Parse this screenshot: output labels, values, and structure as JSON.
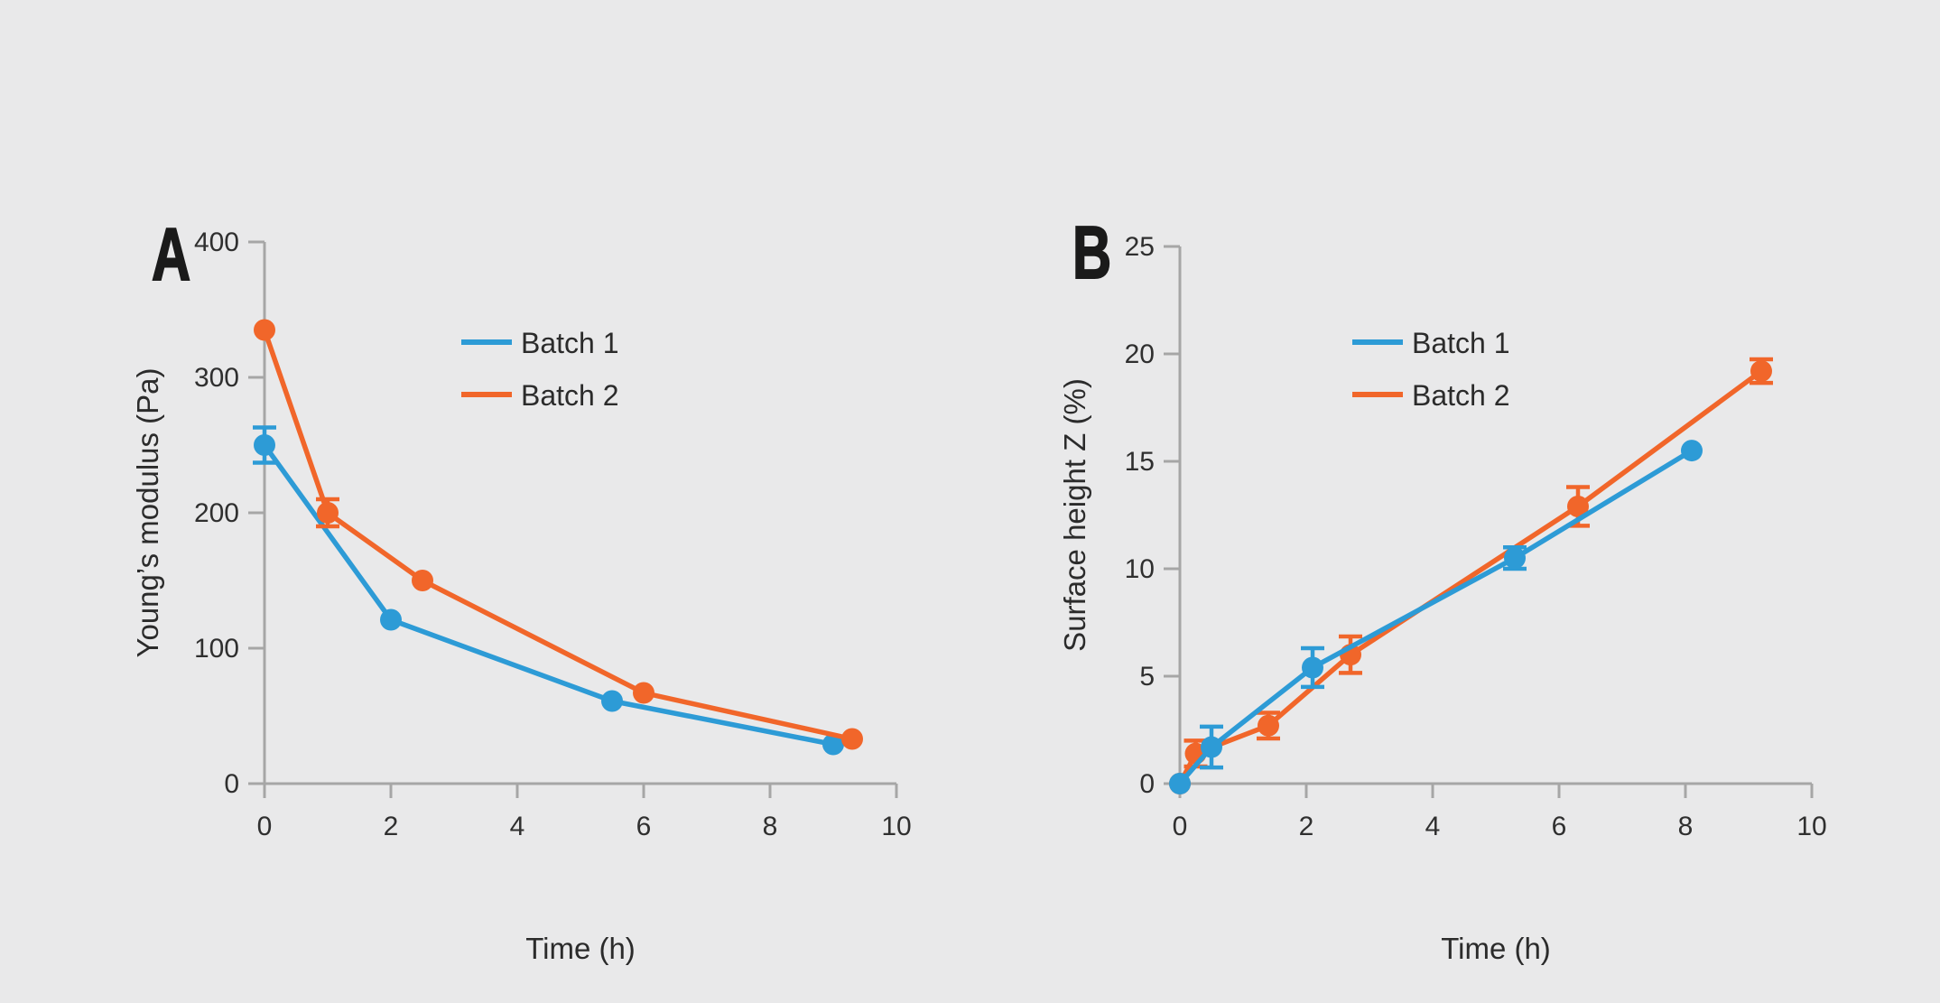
{
  "figure_title": "",
  "colors": {
    "batch1": "#2d9bd6",
    "batch2": "#f1662a",
    "axis": "#a6a6a6",
    "tick_text": "#2f2f2f",
    "label_text": "#2b2b2b",
    "panel_label": "#1a1a1a",
    "background": "#e9e9ea"
  },
  "chart_data": [
    {
      "type": "line",
      "panel_label": "A",
      "title": "",
      "xlabel": "Time (h)",
      "ylabel": "Young’s modulus (Pa)",
      "xlim": [
        0,
        10
      ],
      "ylim": [
        0,
        400
      ],
      "xticks": [
        0,
        2,
        4,
        6,
        8,
        10
      ],
      "yticks": [
        0,
        100,
        200,
        300,
        400
      ],
      "grid": false,
      "legend": [
        "Batch 1",
        "Batch 2"
      ],
      "legend_position": "upper-right-inside",
      "series": [
        {
          "name": "Batch 1",
          "color_key": "batch1",
          "x": [
            0,
            2,
            5.5,
            9
          ],
          "y": [
            250,
            121,
            61,
            29
          ],
          "yerr": [
            13,
            0,
            0,
            0
          ]
        },
        {
          "name": "Batch 2",
          "color_key": "batch2",
          "x": [
            0,
            1,
            2.5,
            6,
            9.3
          ],
          "y": [
            335,
            200,
            150,
            67,
            33
          ],
          "yerr": [
            0,
            10,
            0,
            0,
            0
          ]
        }
      ]
    },
    {
      "type": "line",
      "panel_label": "B",
      "title": "",
      "xlabel": "Time (h)",
      "ylabel": "Surface height Z (%)",
      "xlim": [
        0,
        10
      ],
      "ylim": [
        0,
        25
      ],
      "xticks": [
        0,
        2,
        4,
        6,
        8,
        10
      ],
      "yticks": [
        0,
        5,
        10,
        15,
        20,
        25
      ],
      "grid": false,
      "legend": [
        "Batch 1",
        "Batch 2"
      ],
      "legend_position": "upper-right-inside",
      "series": [
        {
          "name": "Batch 1",
          "color_key": "batch1",
          "x": [
            0,
            0.5,
            2.1,
            5.3,
            8.1
          ],
          "y": [
            0,
            1.7,
            5.4,
            10.5,
            15.5
          ],
          "yerr": [
            0,
            0.95,
            0.9,
            0.5,
            0
          ]
        },
        {
          "name": "Batch 2",
          "color_key": "batch2",
          "x": [
            0,
            0.25,
            1.4,
            2.7,
            6.3,
            9.2
          ],
          "y": [
            0,
            1.4,
            2.7,
            6.0,
            12.9,
            19.2
          ],
          "yerr": [
            0,
            0.6,
            0.6,
            0.85,
            0.9,
            0.55
          ]
        }
      ]
    }
  ]
}
